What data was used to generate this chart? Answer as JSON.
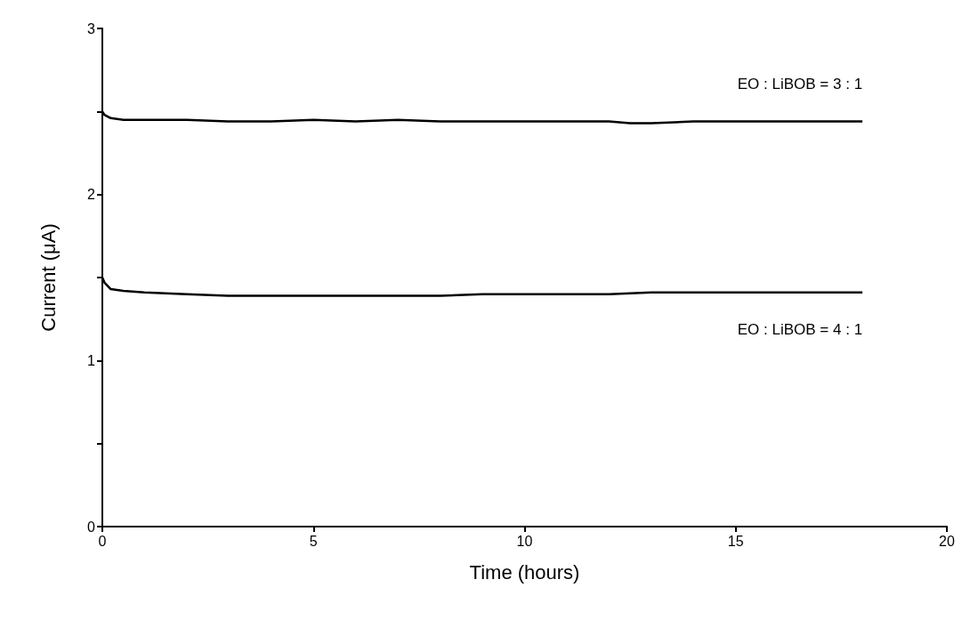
{
  "chart_data": {
    "type": "line",
    "xlabel": "Time (hours)",
    "ylabel": "Current (μA)",
    "xlim": [
      0,
      20
    ],
    "xticks": [
      0,
      5,
      10,
      15,
      20
    ],
    "ylim": [
      0,
      3
    ],
    "yticks": [
      0,
      {
        "value": 0.5,
        "label": null
      },
      1,
      {
        "value": 1.5,
        "label": null
      },
      2,
      {
        "value": 2.5,
        "label": null
      },
      3
    ],
    "grid": false,
    "marker": "none",
    "line_style": "solid",
    "series": [
      {
        "name": "EO : LiBOB = 3 : 1",
        "color": "#000000",
        "x": [
          0,
          0.05,
          0.2,
          0.5,
          1,
          2,
          3,
          4,
          5,
          6,
          7,
          8,
          9,
          10,
          11,
          12,
          12.5,
          13,
          14,
          15,
          16,
          17,
          18
        ],
        "values": [
          2.5,
          2.48,
          2.46,
          2.45,
          2.45,
          2.45,
          2.44,
          2.44,
          2.45,
          2.44,
          2.45,
          2.44,
          2.44,
          2.44,
          2.44,
          2.44,
          2.43,
          2.43,
          2.44,
          2.44,
          2.44,
          2.44,
          2.44
        ]
      },
      {
        "name": "EO : LiBOB = 4 : 1",
        "color": "#000000",
        "x": [
          0,
          0.05,
          0.2,
          0.5,
          1,
          2,
          3,
          4,
          5,
          6,
          7,
          8,
          9,
          10,
          11,
          12,
          13,
          14,
          15,
          16,
          17,
          18
        ],
        "values": [
          1.5,
          1.47,
          1.43,
          1.42,
          1.41,
          1.4,
          1.39,
          1.39,
          1.39,
          1.39,
          1.39,
          1.39,
          1.4,
          1.4,
          1.4,
          1.4,
          1.41,
          1.41,
          1.41,
          1.41,
          1.41,
          1.41
        ]
      }
    ]
  }
}
